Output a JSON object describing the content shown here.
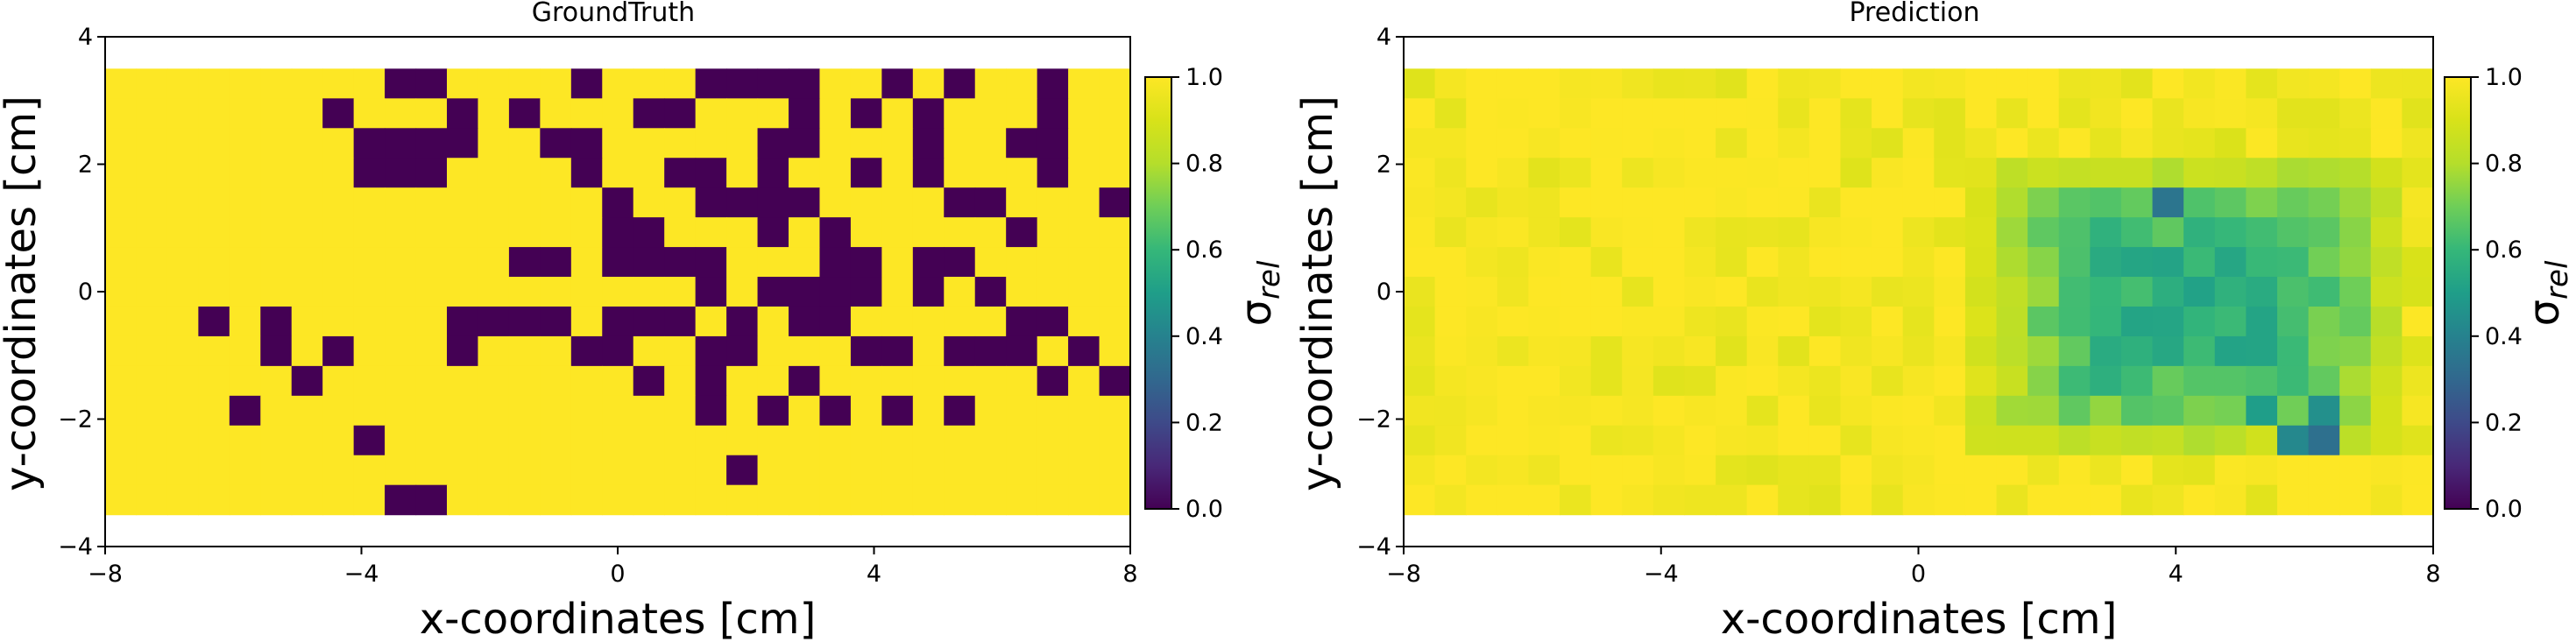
{
  "chart_data": [
    {
      "type": "heatmap",
      "title": "GroundTruth",
      "xlabel": "x-coordinates [cm]",
      "ylabel": "y-coordinates [cm]",
      "xlim": [
        -8,
        8
      ],
      "ylim": [
        -4,
        4
      ],
      "xticks": [
        "−8",
        "−4",
        "0",
        "4",
        "8"
      ],
      "yticks": [
        "4",
        "2",
        "0",
        "−2",
        "−4"
      ],
      "grid": false,
      "cell_extent": {
        "x": [
          -8,
          8
        ],
        "y": [
          -3.5,
          3.5
        ]
      },
      "cell_counts": {
        "cols": 33,
        "rows": 15
      },
      "colorbar": {
        "label": "σrel",
        "label_main": "σ",
        "label_sub": "rel",
        "range": [
          0.0,
          1.0
        ],
        "ticks": [
          "1.0",
          "0.8",
          "0.6",
          "0.4",
          "0.2",
          "0.0"
        ]
      },
      "background_value": 1.0,
      "low_value_cells": [
        [
          9,
          14
        ],
        [
          10,
          14
        ],
        [
          20,
          13
        ],
        [
          8,
          12
        ],
        [
          4,
          11
        ],
        [
          19,
          11
        ],
        [
          21,
          11
        ],
        [
          23,
          11
        ],
        [
          25,
          11
        ],
        [
          27,
          11
        ],
        [
          6,
          10
        ],
        [
          17,
          10
        ],
        [
          19,
          10
        ],
        [
          22,
          10
        ],
        [
          30,
          10
        ],
        [
          32,
          10
        ],
        [
          5,
          9
        ],
        [
          7,
          9
        ],
        [
          11,
          9
        ],
        [
          15,
          9
        ],
        [
          16,
          9
        ],
        [
          19,
          9
        ],
        [
          20,
          9
        ],
        [
          24,
          9
        ],
        [
          25,
          9
        ],
        [
          27,
          9
        ],
        [
          28,
          9
        ],
        [
          29,
          9
        ],
        [
          31,
          9
        ],
        [
          3,
          8
        ],
        [
          5,
          8
        ],
        [
          11,
          8
        ],
        [
          12,
          8
        ],
        [
          13,
          8
        ],
        [
          14,
          8
        ],
        [
          16,
          8
        ],
        [
          17,
          8
        ],
        [
          18,
          8
        ],
        [
          20,
          8
        ],
        [
          22,
          8
        ],
        [
          23,
          8
        ],
        [
          29,
          8
        ],
        [
          30,
          8
        ],
        [
          19,
          7
        ],
        [
          21,
          7
        ],
        [
          22,
          7
        ],
        [
          23,
          7
        ],
        [
          24,
          7
        ],
        [
          26,
          7
        ],
        [
          28,
          7
        ],
        [
          13,
          6
        ],
        [
          14,
          6
        ],
        [
          16,
          6
        ],
        [
          17,
          6
        ],
        [
          18,
          6
        ],
        [
          19,
          6
        ],
        [
          23,
          6
        ],
        [
          24,
          6
        ],
        [
          26,
          6
        ],
        [
          27,
          6
        ],
        [
          16,
          5
        ],
        [
          17,
          5
        ],
        [
          21,
          5
        ],
        [
          23,
          5
        ],
        [
          29,
          5
        ],
        [
          16,
          4
        ],
        [
          19,
          4
        ],
        [
          20,
          4
        ],
        [
          21,
          4
        ],
        [
          22,
          4
        ],
        [
          27,
          4
        ],
        [
          28,
          4
        ],
        [
          32,
          4
        ],
        [
          8,
          3
        ],
        [
          9,
          3
        ],
        [
          10,
          3
        ],
        [
          15,
          3
        ],
        [
          18,
          3
        ],
        [
          19,
          3
        ],
        [
          21,
          3
        ],
        [
          24,
          3
        ],
        [
          26,
          3
        ],
        [
          30,
          3
        ],
        [
          8,
          2
        ],
        [
          9,
          2
        ],
        [
          10,
          2
        ],
        [
          11,
          2
        ],
        [
          14,
          2
        ],
        [
          15,
          2
        ],
        [
          21,
          2
        ],
        [
          22,
          2
        ],
        [
          26,
          2
        ],
        [
          29,
          2
        ],
        [
          30,
          2
        ],
        [
          7,
          1
        ],
        [
          11,
          1
        ],
        [
          13,
          1
        ],
        [
          17,
          1
        ],
        [
          18,
          1
        ],
        [
          22,
          1
        ],
        [
          24,
          1
        ],
        [
          26,
          1
        ],
        [
          30,
          1
        ],
        [
          9,
          0
        ],
        [
          10,
          0
        ],
        [
          15,
          0
        ],
        [
          19,
          0
        ],
        [
          20,
          0
        ],
        [
          21,
          0
        ],
        [
          22,
          0
        ],
        [
          25,
          0
        ],
        [
          27,
          0
        ],
        [
          30,
          0
        ]
      ]
    },
    {
      "type": "heatmap",
      "title": "Prediction",
      "xlabel": "x-coordinates [cm]",
      "ylabel": "y-coordinates [cm]",
      "xlim": [
        -8,
        8
      ],
      "ylim": [
        -4,
        4
      ],
      "xticks": [
        "−8",
        "−4",
        "0",
        "4",
        "8"
      ],
      "yticks": [
        "4",
        "2",
        "0",
        "−2",
        "−4"
      ],
      "grid": false,
      "cell_extent": {
        "x": [
          -8,
          8
        ],
        "y": [
          -3.5,
          3.5
        ]
      },
      "cell_counts": {
        "cols": 33,
        "rows": 15
      },
      "colorbar": {
        "label": "σrel",
        "label_main": "σ",
        "label_sub": "rel",
        "range": [
          0.0,
          1.0
        ],
        "ticks": [
          "1.0",
          "0.8",
          "0.6",
          "0.4",
          "0.2",
          "0.0"
        ]
      },
      "region_model": {
        "note_free": true,
        "center_x": 4.3,
        "center_y": -0.2,
        "half_width_x": 3.6,
        "half_width_y": 2.6,
        "min_value": 0.55,
        "max_value": 0.98
      },
      "low_value_cells": [
        {
          "col": 24,
          "row": 4,
          "value": 0.35
        },
        {
          "col": 29,
          "row": 12,
          "value": 0.33
        },
        {
          "col": 28,
          "row": 12,
          "value": 0.42
        },
        {
          "col": 29,
          "row": 11,
          "value": 0.45
        },
        {
          "col": 27,
          "row": 11,
          "value": 0.5
        }
      ]
    }
  ]
}
